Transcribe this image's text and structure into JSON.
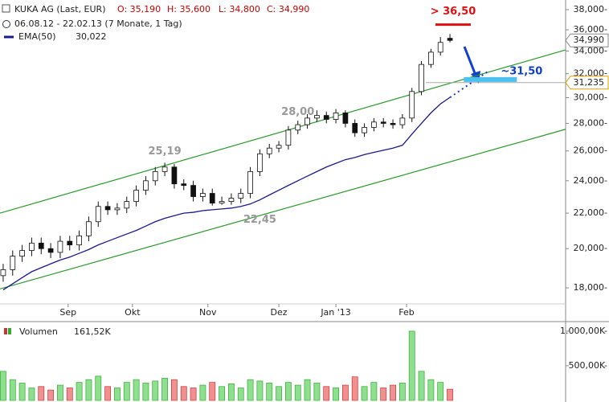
{
  "chart_data": {
    "type": "candlestick",
    "header": {
      "title": "KUKA AG (Last, EUR)",
      "open": "O: 35,190",
      "high": "H: 35,600",
      "low": "L: 34,800",
      "close": "C: 34,990",
      "range": "06.08.12 - 22.02.13 (7 Monate, 1 Tag)",
      "ema_name": "EMA(50)",
      "ema_value": "30,022",
      "volume_name": "Volumen",
      "volume_value": "161,52K"
    },
    "x": [
      0,
      3,
      6,
      9,
      12,
      15,
      18,
      21,
      24,
      27,
      30,
      33,
      36,
      39,
      42,
      45,
      48,
      51,
      54,
      57,
      60,
      63,
      66,
      69,
      72,
      75,
      78,
      81,
      84,
      87,
      90,
      93,
      96,
      99,
      102,
      105,
      108,
      111,
      114,
      117,
      120,
      123,
      126,
      129,
      132,
      135,
      138,
      141
    ],
    "open": [
      18600,
      18900,
      19600,
      19900,
      20300,
      20000,
      19800,
      20400,
      20200,
      20700,
      21500,
      22400,
      22200,
      22300,
      22700,
      23400,
      24000,
      24600,
      24900,
      23800,
      23700,
      23000,
      23200,
      22600,
      22700,
      22900,
      23200,
      24600,
      25800,
      26200,
      26400,
      27500,
      27900,
      28400,
      28600,
      28300,
      28800,
      28000,
      27300,
      27700,
      28100,
      28000,
      27900,
      28400,
      30500,
      32800,
      33900,
      35190
    ],
    "high": [
      19200,
      19900,
      20200,
      20600,
      20600,
      20300,
      20700,
      20700,
      21000,
      21800,
      22700,
      22700,
      22600,
      23000,
      23700,
      24300,
      24900,
      25190,
      25100,
      24100,
      24000,
      23500,
      23500,
      23000,
      23200,
      23500,
      24900,
      26100,
      26500,
      26700,
      27800,
      28200,
      28700,
      29000,
      28900,
      29100,
      29000,
      28300,
      28000,
      28400,
      28400,
      28300,
      28700,
      30800,
      33100,
      34200,
      35300,
      35600
    ],
    "low": [
      18300,
      18600,
      19300,
      19600,
      19700,
      19500,
      19500,
      19900,
      19900,
      20400,
      21200,
      21900,
      21900,
      22000,
      22400,
      23100,
      23700,
      24300,
      23500,
      23400,
      22700,
      22700,
      22450,
      22500,
      22500,
      22600,
      22900,
      24300,
      25500,
      25900,
      26100,
      27200,
      27600,
      28100,
      28000,
      28000,
      27700,
      27000,
      27000,
      27400,
      27700,
      27600,
      27600,
      28100,
      30200,
      32500,
      33600,
      34800
    ],
    "close": [
      18900,
      19600,
      19900,
      20300,
      20000,
      19800,
      20400,
      20200,
      20700,
      21500,
      22400,
      22200,
      22300,
      22700,
      23400,
      24000,
      24600,
      24900,
      23800,
      23700,
      23000,
      23200,
      22600,
      22700,
      22900,
      23200,
      24600,
      25800,
      26200,
      26400,
      27500,
      27900,
      28400,
      28600,
      28300,
      28800,
      28000,
      27300,
      27700,
      28100,
      28000,
      27900,
      28400,
      30500,
      32800,
      33900,
      34800,
      34990
    ],
    "ema": [
      17900,
      18200,
      18500,
      18800,
      19000,
      19200,
      19400,
      19550,
      19750,
      19950,
      20200,
      20400,
      20600,
      20800,
      21000,
      21250,
      21500,
      21700,
      21850,
      22000,
      22050,
      22150,
      22200,
      22250,
      22300,
      22400,
      22550,
      22800,
      23100,
      23400,
      23700,
      24000,
      24300,
      24600,
      24900,
      25150,
      25400,
      25550,
      25750,
      25900,
      26050,
      26200,
      26400,
      27200,
      28000,
      28800,
      29500,
      30022
    ],
    "ema_color": "#1a1a8c",
    "volume": [
      420,
      300,
      250,
      180,
      200,
      150,
      220,
      180,
      260,
      300,
      350,
      200,
      180,
      260,
      300,
      250,
      280,
      320,
      300,
      200,
      180,
      220,
      260,
      200,
      240,
      180,
      300,
      280,
      250,
      200,
      260,
      220,
      300,
      250,
      200,
      180,
      220,
      340,
      200,
      260,
      180,
      220,
      250,
      1000,
      420,
      300,
      260,
      161.52
    ],
    "xlim": [
      -1,
      177.5
    ],
    "xticks": [
      {
        "value": 20.5,
        "label": "Sep"
      },
      {
        "value": 40.8,
        "label": "Okt"
      },
      {
        "value": 64.6,
        "label": "Nov"
      },
      {
        "value": 87,
        "label": "Dez"
      },
      {
        "value": 105,
        "label": "Jan '13"
      },
      {
        "value": 127.3,
        "label": "Feb"
      }
    ],
    "ylim": [
      17240,
      39000
    ],
    "log": true,
    "yticks": [
      {
        "value": 38000,
        "label": "38,000-"
      },
      {
        "value": 36000,
        "label": "36,000-"
      },
      {
        "value": 34000,
        "label": "34,000-"
      },
      {
        "value": 32000,
        "label": "32,000-"
      },
      {
        "value": 30000,
        "label": "30,000-"
      },
      {
        "value": 28000,
        "label": "28,000-"
      },
      {
        "value": 26000,
        "label": "26,000-"
      },
      {
        "value": 24000,
        "label": "24,000-"
      },
      {
        "value": 22000,
        "label": "22,000-"
      },
      {
        "value": 20000,
        "label": "20,000-"
      },
      {
        "value": 18000,
        "label": "18,000-"
      }
    ],
    "volume_ylim": [
      0,
      1080
    ],
    "volume_yticks": [
      {
        "value": 1000,
        "label": "1.000,00K-"
      },
      {
        "value": 500,
        "label": "500,00K-"
      }
    ],
    "price_labels": [
      {
        "value": 34990,
        "label": "34,990"
      },
      {
        "value": 31235,
        "label": "31,235"
      }
    ],
    "trendlines": [
      {
        "x": [
          -1,
          177.5
        ],
        "values": [
          22000,
          34110
        ]
      },
      {
        "x": [
          -1,
          177.5
        ],
        "values": [
          17950,
          27562
        ]
      }
    ],
    "trend_color": "#2a9a2a",
    "annotations": [
      {
        "label": "25,19",
        "x": 51,
        "value": 25190,
        "color": "#999999"
      },
      {
        "label": "28,00",
        "x": 93,
        "value": 28000,
        "color": "#999999"
      },
      {
        "label": "22,45",
        "x": 81,
        "value": 22450,
        "color": "#999999"
      },
      {
        "label": "> 36,50",
        "x": 142,
        "value": 36500,
        "color": "#e01010"
      },
      {
        "label": "~31,50",
        "x": 154,
        "value": 31500,
        "color": "#1040c0"
      }
    ]
  }
}
